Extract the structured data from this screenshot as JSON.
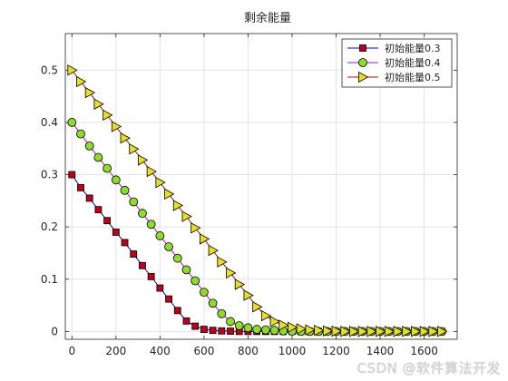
{
  "chart_data": {
    "type": "line",
    "title": "剩余能量",
    "xlabel": "",
    "ylabel": "",
    "xlim": [
      -30,
      1750
    ],
    "ylim": [
      -0.015,
      0.57
    ],
    "xticks": [
      0,
      200,
      400,
      600,
      800,
      1000,
      1200,
      1400,
      1600
    ],
    "yticks": [
      0,
      0.1,
      0.2,
      0.3,
      0.4,
      0.5
    ],
    "grid": true,
    "legend_position": "top-right",
    "x": [
      0,
      40,
      80,
      120,
      160,
      200,
      240,
      280,
      320,
      360,
      400,
      440,
      480,
      520,
      560,
      600,
      640,
      680,
      720,
      760,
      800,
      840,
      880,
      920,
      960,
      1000,
      1040,
      1080,
      1120,
      1160,
      1200,
      1240,
      1280,
      1320,
      1360,
      1400,
      1440,
      1480,
      1520,
      1560,
      1600,
      1640,
      1680
    ],
    "series": [
      {
        "name": "初始能量0.3",
        "line_color": "#0000cc",
        "marker": "square",
        "marker_color": "#c0001a",
        "values": [
          0.3,
          0.275,
          0.255,
          0.233,
          0.212,
          0.19,
          0.17,
          0.148,
          0.126,
          0.105,
          0.083,
          0.062,
          0.04,
          0.02,
          0.01,
          0.004,
          0.002,
          0.001,
          0.0005,
          0,
          0,
          0,
          0,
          0,
          0,
          0,
          0,
          0,
          0,
          0,
          0,
          0,
          0,
          0,
          0,
          0,
          0,
          0,
          0,
          0,
          0,
          0,
          0
        ]
      },
      {
        "name": "初始能量0.4",
        "line_color": "#cc00cc",
        "marker": "circle",
        "marker_color": "#8cdc28",
        "values": [
          0.4,
          0.378,
          0.355,
          0.333,
          0.312,
          0.29,
          0.27,
          0.248,
          0.226,
          0.205,
          0.183,
          0.162,
          0.14,
          0.118,
          0.097,
          0.075,
          0.054,
          0.034,
          0.019,
          0.011,
          0.007,
          0.004,
          0.003,
          0.002,
          0.001,
          0.0005,
          0,
          0,
          0,
          0,
          0,
          0,
          0,
          0,
          0,
          0,
          0,
          0,
          0,
          0,
          0,
          0,
          0
        ]
      },
      {
        "name": "初始能量0.5",
        "line_color": "#cc0000",
        "marker": "triangle-right",
        "marker_color": "#e6e01e",
        "values": [
          0.5,
          0.478,
          0.457,
          0.435,
          0.414,
          0.392,
          0.37,
          0.349,
          0.328,
          0.306,
          0.285,
          0.263,
          0.241,
          0.22,
          0.198,
          0.177,
          0.155,
          0.133,
          0.112,
          0.09,
          0.069,
          0.047,
          0.03,
          0.019,
          0.012,
          0.008,
          0.005,
          0.003,
          0.002,
          0.001,
          0.0005,
          0,
          0,
          0,
          0,
          0,
          0,
          0,
          0,
          0,
          0,
          0,
          0
        ]
      }
    ]
  },
  "watermark": "CSDN @软件算法开发"
}
